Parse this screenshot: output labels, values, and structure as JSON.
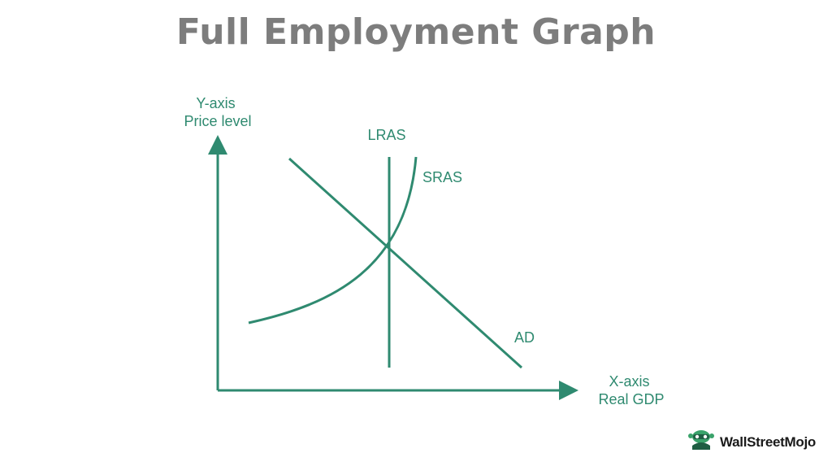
{
  "title": "Full Employment Graph",
  "colors": {
    "curve": "#2f8a70",
    "title": "#7d7d7d",
    "logo_accent": "#3aa36b"
  },
  "y_axis": {
    "line1": "Y-axis",
    "line2": "Price level"
  },
  "x_axis": {
    "line1": "X-axis",
    "line2": "Real GDP"
  },
  "curves": {
    "lras": "LRAS",
    "sras": "SRAS",
    "ad": "AD"
  },
  "logo": {
    "text": "WallStreetMojo",
    "icon": "wallstreetmojo-mascot-icon"
  }
}
